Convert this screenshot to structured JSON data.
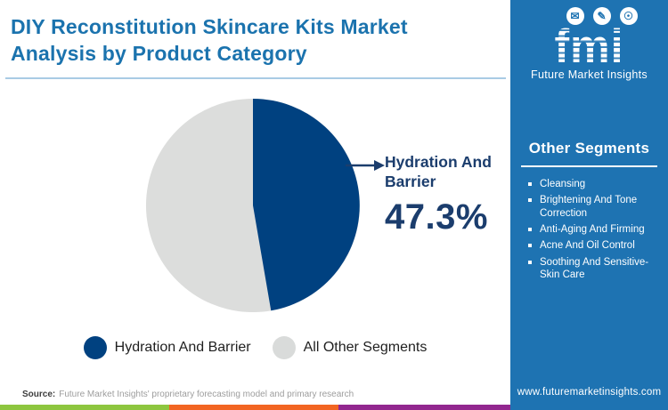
{
  "header": {
    "title": "DIY Reconstitution Skincare Kits Market Analysis by Product Category"
  },
  "logo": {
    "brand": "fmi",
    "brand_name": "Future Market Insights",
    "icons": [
      "map-icon",
      "pen-icon",
      "globe-icon"
    ]
  },
  "chart_data": {
    "type": "pie",
    "title": "DIY Reconstitution Skincare Kits Market Analysis by Product Category",
    "slices": [
      {
        "label": "Hydration And Barrier",
        "value": 47.3,
        "color": "#004180"
      },
      {
        "label": "All Other Segments",
        "value": 52.7,
        "color": "#dcdddc"
      }
    ],
    "start_angle_deg": 0,
    "direction": "clockwise",
    "callout": {
      "label": "Hydration And Barrier",
      "value_label": "47.3%"
    },
    "legend_position": "bottom"
  },
  "legend": [
    {
      "label": "Hydration And Barrier",
      "color": "#004180"
    },
    {
      "label": "All Other Segments",
      "color": "#d9dbda"
    }
  ],
  "sidebar": {
    "title": "Other Segments",
    "items": [
      "Cleansing",
      "Brightening And Tone Correction",
      "Anti-Aging And Firming",
      "Acne And Oil Control",
      "Soothing And Sensitive-Skin Care"
    ]
  },
  "footer": {
    "source_label": "Source:",
    "source_text": "Future Market Insights' proprietary forecasting model and primary research",
    "website": "www.futuremarketinsights.com"
  },
  "colors": {
    "title_blue": "#1b73ae",
    "panel_blue": "#1e73b2",
    "pie_blue": "#004180",
    "pie_gray": "#dcdddc",
    "callout_navy": "#1b3d6d",
    "divider_light_blue": "#a9cbe4",
    "strip_green": "#8dc63f",
    "strip_orange": "#f26522",
    "strip_purple": "#92278f"
  }
}
